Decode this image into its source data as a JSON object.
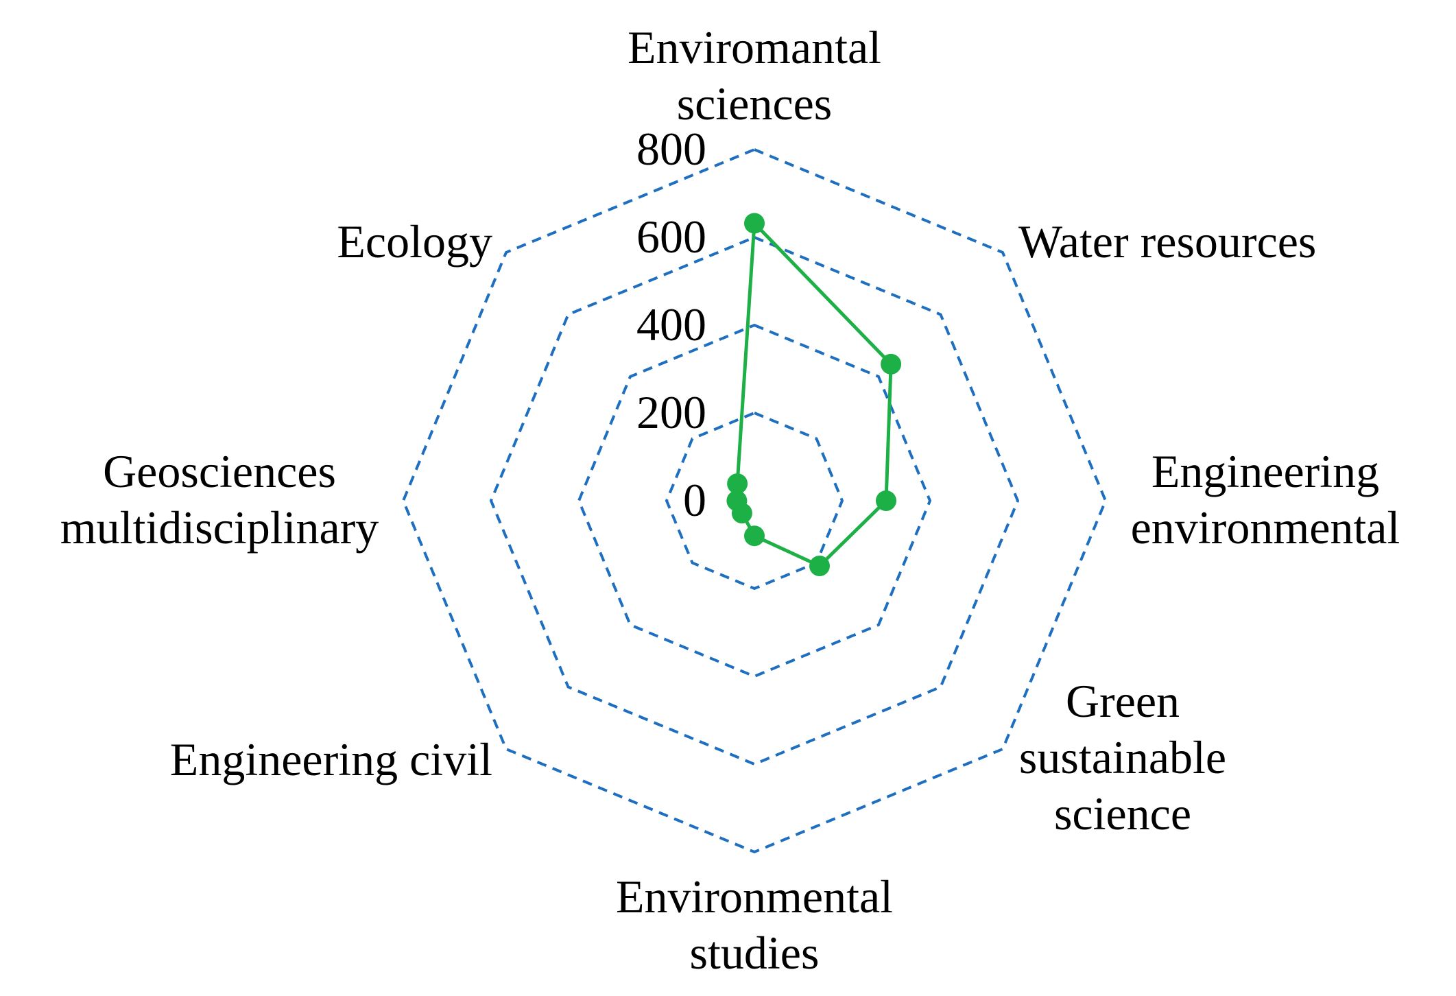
{
  "chart_data": {
    "type": "radar",
    "categories": [
      [
        "Enviromantal",
        "sciences"
      ],
      [
        "Water resources"
      ],
      [
        "Engineering",
        "environmental"
      ],
      [
        "Green",
        "sustainable",
        "science"
      ],
      [
        "Environmental",
        "studies"
      ],
      [
        "Engineering civil"
      ],
      [
        "Geosciences",
        "multidisciplinary"
      ],
      [
        "Ecology"
      ]
    ],
    "series": [
      {
        "values": [
          632,
          440,
          300,
          210,
          80,
          40,
          40,
          55
        ],
        "color": "#1db046"
      }
    ],
    "rlim": [
      0,
      800
    ],
    "ticks": [
      0,
      200,
      400,
      600,
      800
    ],
    "tick_labels": [
      "0",
      "200",
      "400",
      "600",
      "800"
    ],
    "grid": {
      "style": "dashed",
      "color": "#1f6fc0"
    },
    "legend": "none"
  }
}
